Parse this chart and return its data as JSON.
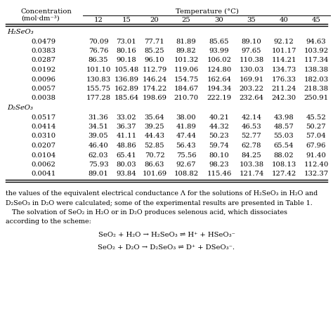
{
  "col_header_top": "Temperature (°C)",
  "section1_label": "H₂SeO₃",
  "section1": [
    [
      "0.0479",
      "70.09",
      "73.01",
      "77.71",
      "81.89",
      "85.65",
      "89.10",
      "92.12",
      "94.63"
    ],
    [
      "0.0383",
      "76.76",
      "80.16",
      "85.25",
      "89.82",
      "93.99",
      "97.65",
      "101.17",
      "103.92"
    ],
    [
      "0.0287",
      "86.35",
      "90.18",
      "96.10",
      "101.32",
      "106.02",
      "110.38",
      "114.21",
      "117.34"
    ],
    [
      "0.0192",
      "101.10",
      "105.48",
      "112.79",
      "119.06",
      "124.80",
      "130.03",
      "134.73",
      "138.38"
    ],
    [
      "0.0096",
      "130.83",
      "136.89",
      "146.24",
      "154.75",
      "162.64",
      "169.91",
      "176.33",
      "182.03"
    ],
    [
      "0.0057",
      "155.75",
      "162.89",
      "174.22",
      "184.67",
      "194.34",
      "203.22",
      "211.24",
      "218.38"
    ],
    [
      "0.0038",
      "177.28",
      "185.64",
      "198.69",
      "210.70",
      "222.19",
      "232.64",
      "242.30",
      "250.91"
    ]
  ],
  "section2_label": "D₂SeO₃",
  "section2": [
    [
      "0.0517",
      "31.36",
      "33.02",
      "35.64",
      "38.00",
      "40.21",
      "42.14",
      "43.98",
      "45.52"
    ],
    [
      "0.0414",
      "34.51",
      "36.37",
      "39.25",
      "41.89",
      "44.32",
      "46.53",
      "48.57",
      "50.27"
    ],
    [
      "0.0310",
      "39.05",
      "41.11",
      "44.43",
      "47.44",
      "50.23",
      "52.77",
      "55.03",
      "57.04"
    ],
    [
      "0.0207",
      "46.40",
      "48.86",
      "52.85",
      "56.43",
      "59.74",
      "62.78",
      "65.54",
      "67.96"
    ],
    [
      "0.0104",
      "62.03",
      "65.41",
      "70.72",
      "75.56",
      "80.10",
      "84.25",
      "88.02",
      "91.40"
    ],
    [
      "0.0062",
      "75.93",
      "80.03",
      "86.63",
      "92.67",
      "98.23",
      "103.38",
      "108.13",
      "112.40"
    ],
    [
      "0.0041",
      "89.01",
      "93.84",
      "101.69",
      "108.82",
      "115.46",
      "121.74",
      "127.42",
      "132.37"
    ]
  ],
  "temps": [
    "12",
    "15",
    "20",
    "25",
    "30",
    "35",
    "40",
    "45"
  ],
  "footer_lines": [
    "the values of the equivalent electrical conductance Λ for the solutions of H₂SeO₃ in H₂O and",
    "D₂SeO₃ in D₂O were calculated; some of the experimental results are presented in Table 1.",
    "   The solvation of SeO₂ in H₂O or in D₂O produces selenous acid, which dissociates",
    "according to the scheme:"
  ],
  "eq1": "SeO₂ + H₂O → H₂SeO₃ ⇌ H⁺ + HSeO₃⁻",
  "eq2": "SeO₂ + D₂O → D₂SeO₃ ⇌ D⁺ + DSeO₃⁻."
}
